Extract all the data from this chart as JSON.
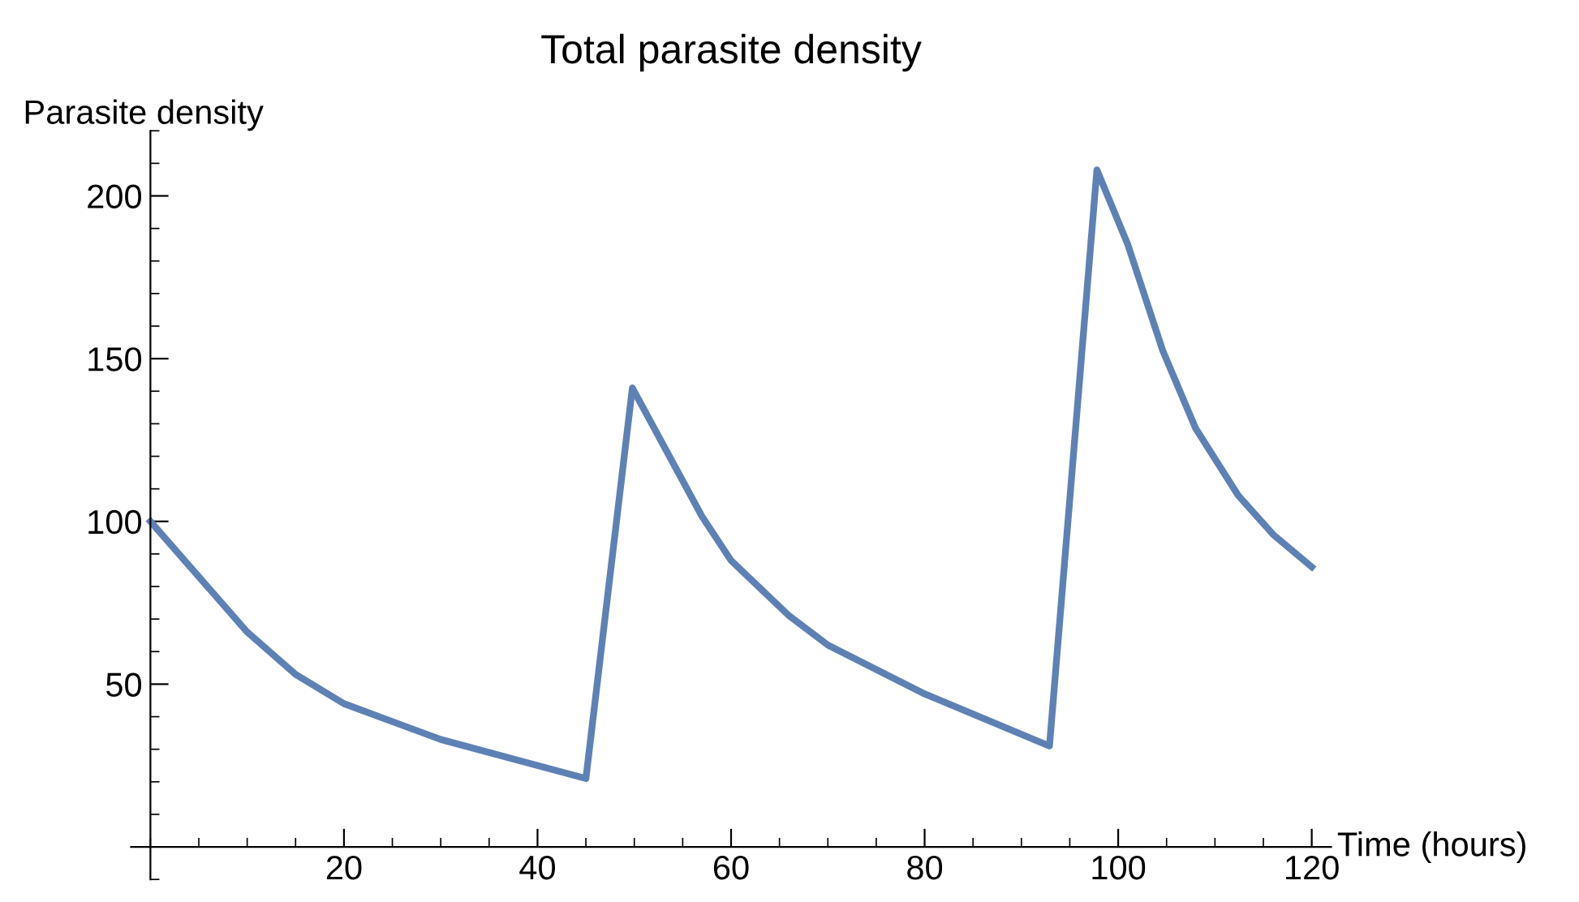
{
  "chart_data": {
    "type": "line",
    "title": "Total parasite density",
    "xlabel": "Time (hours)",
    "ylabel": "Parasite density",
    "series": [
      {
        "color": "#5e81b5",
        "x": [
          0,
          5,
          10,
          15,
          20,
          30,
          40,
          45,
          49.8,
          57,
          60,
          66,
          70,
          80,
          92.9,
          97.8,
          101,
          104.6,
          108,
          112.4,
          116,
          120
        ],
        "values": [
          100,
          83,
          66,
          53,
          44,
          33,
          25,
          21,
          141,
          101.5,
          88,
          71,
          62,
          47,
          31,
          208,
          185,
          152.5,
          128.6,
          108,
          96,
          86
        ]
      }
    ],
    "xlim": [
      -2,
      122
    ],
    "ylim": [
      -10,
      220
    ],
    "xticks": [
      20,
      40,
      60,
      80,
      100,
      120
    ],
    "yticks": [
      50,
      100,
      150,
      200
    ],
    "grid": false,
    "legend": false,
    "marker": "none",
    "line_style": "solid"
  }
}
